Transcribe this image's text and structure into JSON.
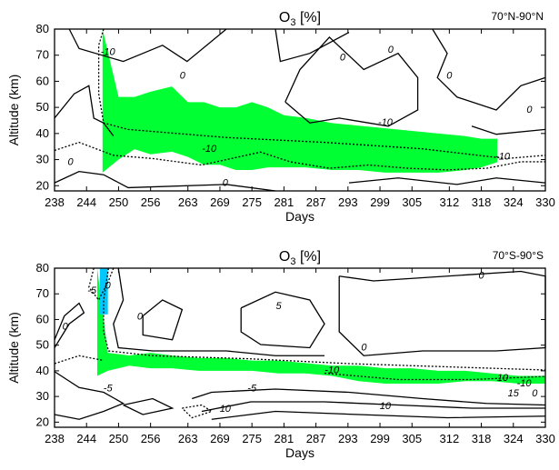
{
  "chart_data": [
    {
      "type": "heatmap",
      "title_main": "O",
      "title_sub": "3",
      "title_unit": " [%]",
      "region": "70°N-90°N",
      "xlabel": "Days",
      "ylabel": "Altitude (km)",
      "xticks": [
        238,
        244,
        250,
        256,
        263,
        269,
        275,
        281,
        287,
        293,
        299,
        305,
        312,
        318,
        324,
        330
      ],
      "yticks": [
        20,
        30,
        40,
        50,
        60,
        70,
        80
      ],
      "xlim": [
        238,
        330
      ],
      "ylim": [
        18,
        80
      ],
      "fill_color": "#00ff33",
      "green_band": {
        "days": [
          247,
          250,
          253,
          256,
          260,
          263,
          266,
          269,
          272,
          275,
          278,
          281,
          285,
          290,
          295,
          300,
          305,
          310,
          315,
          318,
          321
        ],
        "top": [
          80,
          54,
          54,
          56,
          58,
          52,
          52,
          50,
          50,
          52,
          50,
          47,
          46,
          44,
          43,
          42,
          41,
          40,
          39,
          38,
          38
        ],
        "bottom": [
          25,
          30,
          34,
          32,
          33,
          31,
          28,
          28,
          26,
          26,
          27,
          27,
          27,
          26,
          26,
          25,
          25,
          25,
          26,
          27,
          29
        ]
      },
      "contour_labels": [
        {
          "text": "-10",
          "day": 248,
          "alt": 70
        },
        {
          "text": "0",
          "day": 262,
          "alt": 61
        },
        {
          "text": "0",
          "day": 292,
          "alt": 68
        },
        {
          "text": "0",
          "day": 301,
          "alt": 71
        },
        {
          "text": "-10",
          "day": 300,
          "alt": 43
        },
        {
          "text": "-10",
          "day": 267,
          "alt": 33
        },
        {
          "text": "-10",
          "day": 322,
          "alt": 30
        },
        {
          "text": "0",
          "day": 241,
          "alt": 28
        },
        {
          "text": "0",
          "day": 270,
          "alt": 20
        },
        {
          "text": "0",
          "day": 327,
          "alt": 48
        },
        {
          "text": "0",
          "day": 312,
          "alt": 61
        }
      ]
    },
    {
      "type": "heatmap",
      "title_main": "O",
      "title_sub": "3",
      "title_unit": " [%]",
      "region": "70°S-90°S",
      "xlabel": "Days",
      "ylabel": "Altitude (km)",
      "xticks": [
        238,
        244,
        250,
        256,
        263,
        269,
        275,
        281,
        287,
        293,
        299,
        305,
        312,
        318,
        324,
        330
      ],
      "yticks": [
        20,
        30,
        40,
        50,
        60,
        70,
        80
      ],
      "xlim": [
        238,
        330
      ],
      "ylim": [
        18,
        80
      ],
      "fill_color": "#00ff33",
      "fill_color_strong": "#00c8ff",
      "green_band": {
        "days": [
          246,
          248,
          252,
          256,
          260,
          265,
          270,
          275,
          280,
          285,
          290,
          295,
          300,
          305,
          310,
          315,
          320,
          325,
          330
        ],
        "top": [
          80,
          47,
          46,
          47,
          46,
          45,
          45,
          44,
          44,
          43,
          42,
          42,
          41,
          41,
          40,
          40,
          39,
          38,
          38
        ],
        "bottom": [
          38,
          40,
          42,
          41,
          41,
          40,
          40,
          40,
          39,
          39,
          38,
          36,
          35,
          35,
          35,
          36,
          36,
          35,
          35
        ]
      },
      "contour_labels": [
        {
          "text": "0",
          "day": 318,
          "alt": 76
        },
        {
          "text": "0",
          "day": 248,
          "alt": 72
        },
        {
          "text": "0",
          "day": 254,
          "alt": 60
        },
        {
          "text": "0",
          "day": 240,
          "alt": 56
        },
        {
          "text": "-5",
          "day": 245,
          "alt": 70
        },
        {
          "text": "5",
          "day": 280,
          "alt": 64
        },
        {
          "text": "0",
          "day": 296,
          "alt": 48
        },
        {
          "text": "-10",
          "day": 290,
          "alt": 39
        },
        {
          "text": "-5",
          "day": 248,
          "alt": 32
        },
        {
          "text": "-5",
          "day": 275,
          "alt": 32
        },
        {
          "text": "10",
          "day": 270,
          "alt": 24
        },
        {
          "text": "10",
          "day": 300,
          "alt": 25
        },
        {
          "text": "10",
          "day": 322,
          "alt": 36
        },
        {
          "text": "-10",
          "day": 326,
          "alt": 34
        },
        {
          "text": "15",
          "day": 324,
          "alt": 30
        },
        {
          "text": "0",
          "day": 328,
          "alt": 30
        }
      ]
    }
  ]
}
